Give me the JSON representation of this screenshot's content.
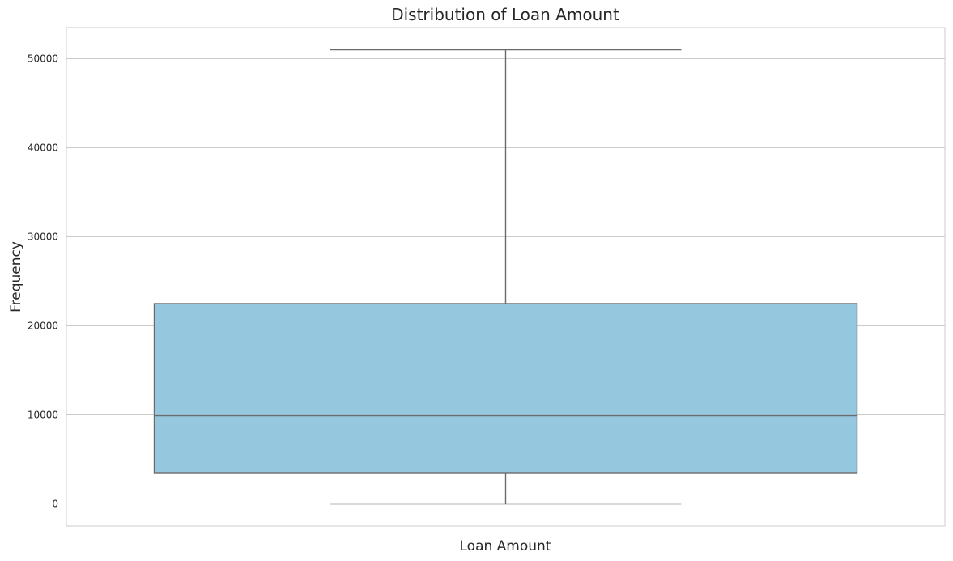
{
  "chart_data": {
    "type": "box",
    "title": "Distribution of Loan Amount",
    "xlabel": "Loan Amount",
    "ylabel": "Frequency",
    "ylim": [
      -2500,
      53500
    ],
    "yticks": [
      0,
      10000,
      20000,
      30000,
      40000,
      50000
    ],
    "ytick_labels": [
      "0",
      "10000",
      "20000",
      "30000",
      "40000",
      "50000"
    ],
    "grid": true,
    "box": {
      "whisker_low": 0,
      "q1": 3500,
      "median": 9900,
      "q3": 22500,
      "whisker_high": 51000
    },
    "colors": {
      "box_fill": "#95c8de",
      "line": "#6b6b6b",
      "grid": "#cccccc",
      "text": "#262626"
    }
  }
}
